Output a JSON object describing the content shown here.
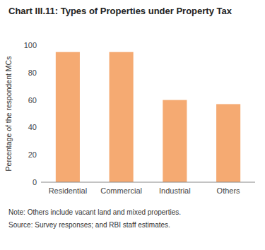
{
  "chart_data": {
    "type": "bar",
    "title": "Chart III.11: Types of Properties under Property Tax",
    "categories": [
      "Residential",
      "Commercial",
      "Industrial",
      "Others"
    ],
    "values": [
      95,
      95,
      60,
      57
    ],
    "color": "#F5AA72",
    "ylabel": "Percentage of the respondent MCs",
    "ylim": [
      0,
      100
    ],
    "yticks": [
      0,
      20,
      40,
      60,
      80,
      100
    ],
    "grid": false,
    "annotations": [
      "Note: Others include vacant land and mixed properties.",
      "Source: Survey responses; and RBI staff estimates."
    ]
  }
}
